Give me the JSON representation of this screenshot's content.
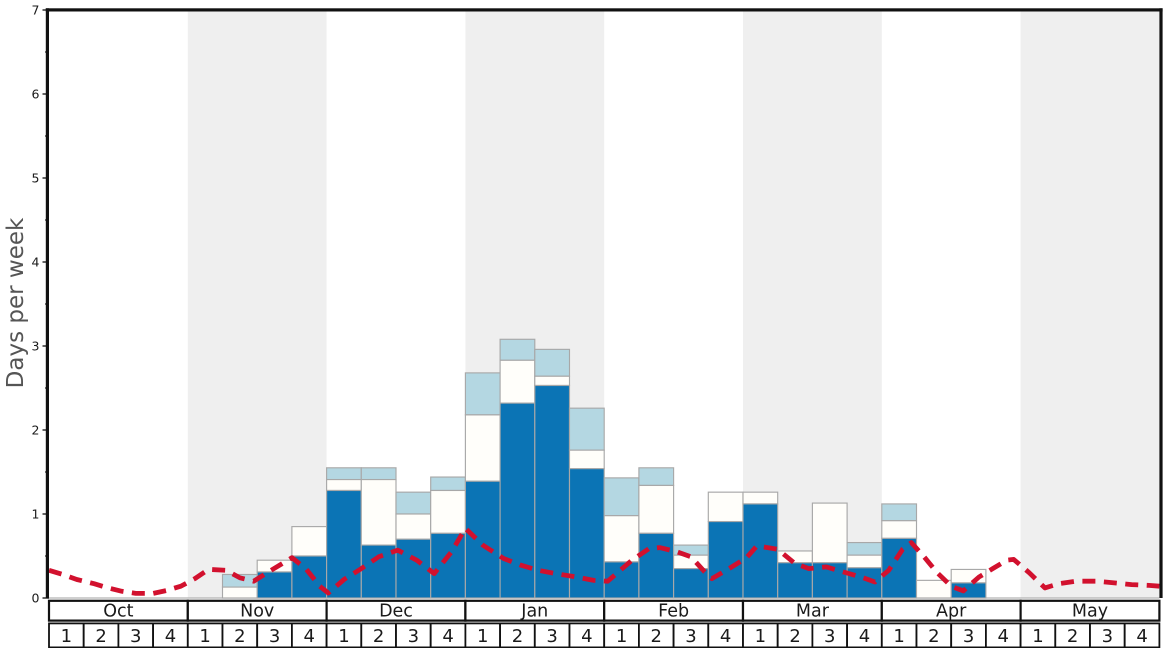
{
  "chart_data": {
    "type": "bar",
    "title": "",
    "ylabel": "Days per week",
    "ylim": [
      0,
      7
    ],
    "yticks": [
      "0",
      "1",
      "2",
      "3",
      "4",
      "5",
      "6",
      "7"
    ],
    "minor_tick_step": 0.5,
    "grid": false,
    "legend": "none",
    "months": [
      "Oct",
      "Nov",
      "Dec",
      "Jan",
      "Feb",
      "Mar",
      "Apr",
      "May"
    ],
    "weeks_per_month": [
      "1",
      "2",
      "3",
      "4"
    ],
    "shaded_months": [
      "Nov",
      "Jan",
      "Mar",
      "May"
    ],
    "categories": [
      "Oct-1",
      "Oct-2",
      "Oct-3",
      "Oct-4",
      "Nov-1",
      "Nov-2",
      "Nov-3",
      "Nov-4",
      "Dec-1",
      "Dec-2",
      "Dec-3",
      "Dec-4",
      "Jan-1",
      "Jan-2",
      "Jan-3",
      "Jan-4",
      "Feb-1",
      "Feb-2",
      "Feb-3",
      "Feb-4",
      "Mar-1",
      "Mar-2",
      "Mar-3",
      "Mar-4",
      "Apr-1",
      "Apr-2",
      "Apr-3",
      "Apr-4",
      "May-1",
      "May-2",
      "May-3",
      "May-4"
    ],
    "series_note": "stacked bars; values are cumulative tops in days-per-week; dark blue bottom segment, white middle segment, light blue top segment",
    "series": [
      {
        "name": "dark-blue-segment-top",
        "tops": [
          0,
          0,
          0,
          0,
          0,
          0,
          0.31,
          0.5,
          1.28,
          0.63,
          0.7,
          0.77,
          1.39,
          2.32,
          2.53,
          1.54,
          0.43,
          0.77,
          0.35,
          0.91,
          1.12,
          0.42,
          0.42,
          0.36,
          0.71,
          0,
          0.18,
          0,
          0,
          0,
          0,
          0
        ]
      },
      {
        "name": "white-segment-top",
        "tops": [
          0,
          0,
          0,
          0,
          0,
          0.13,
          0.45,
          0.85,
          1.41,
          1.41,
          1.0,
          1.28,
          2.18,
          2.83,
          2.64,
          1.76,
          0.98,
          1.34,
          0.51,
          1.26,
          1.26,
          0.56,
          1.13,
          0.51,
          0.92,
          0.21,
          0.34,
          0,
          0,
          0,
          0,
          0
        ]
      },
      {
        "name": "light-blue-segment-top",
        "tops": [
          0,
          0,
          0,
          0,
          0,
          0.28,
          0.45,
          0.85,
          1.55,
          1.55,
          1.26,
          1.44,
          2.68,
          3.08,
          2.96,
          2.26,
          1.43,
          1.55,
          0.63,
          1.26,
          1.26,
          0.56,
          1.13,
          0.66,
          1.12,
          0.21,
          0.34,
          0,
          0,
          0,
          0,
          0
        ]
      }
    ],
    "line_series": {
      "name": "red-dashed-line",
      "x_unit": "weeks from start of Oct (0-32)",
      "y_unit": "days per week",
      "points": [
        [
          0,
          0.33
        ],
        [
          0.4,
          0.28
        ],
        [
          0.8,
          0.22
        ],
        [
          1.3,
          0.17
        ],
        [
          1.7,
          0.12
        ],
        [
          2.1,
          0.08
        ],
        [
          2.5,
          0.055
        ],
        [
          3.0,
          0.055
        ],
        [
          3.4,
          0.09
        ],
        [
          3.8,
          0.14
        ],
        [
          4.2,
          0.23
        ],
        [
          4.6,
          0.34
        ],
        [
          5.1,
          0.33
        ],
        [
          5.5,
          0.24
        ],
        [
          5.9,
          0.2
        ],
        [
          6.4,
          0.33
        ],
        [
          7.0,
          0.48
        ],
        [
          7.4,
          0.35
        ],
        [
          7.8,
          0.14
        ],
        [
          8.05,
          0.06
        ],
        [
          8.5,
          0.22
        ],
        [
          9.0,
          0.35
        ],
        [
          9.5,
          0.49
        ],
        [
          10.05,
          0.57
        ],
        [
          10.6,
          0.45
        ],
        [
          11.1,
          0.29
        ],
        [
          11.6,
          0.55
        ],
        [
          12.0,
          0.83
        ],
        [
          12.5,
          0.63
        ],
        [
          13.1,
          0.47
        ],
        [
          13.6,
          0.39
        ],
        [
          14.1,
          0.33
        ],
        [
          14.6,
          0.29
        ],
        [
          15.2,
          0.25
        ],
        [
          15.7,
          0.21
        ],
        [
          16.1,
          0.2
        ],
        [
          16.8,
          0.45
        ],
        [
          17.3,
          0.59
        ],
        [
          17.6,
          0.6
        ],
        [
          18.1,
          0.55
        ],
        [
          18.5,
          0.49
        ],
        [
          18.9,
          0.31
        ],
        [
          19.1,
          0.23
        ],
        [
          19.6,
          0.35
        ],
        [
          20.1,
          0.48
        ],
        [
          20.4,
          0.62
        ],
        [
          21.0,
          0.58
        ],
        [
          21.5,
          0.41
        ],
        [
          21.9,
          0.35
        ],
        [
          22.4,
          0.37
        ],
        [
          22.9,
          0.31
        ],
        [
          23.4,
          0.25
        ],
        [
          23.8,
          0.19
        ],
        [
          24.2,
          0.33
        ],
        [
          24.6,
          0.58
        ],
        [
          24.85,
          0.66
        ],
        [
          25.2,
          0.5
        ],
        [
          25.6,
          0.3
        ],
        [
          26.0,
          0.14
        ],
        [
          26.35,
          0.085
        ],
        [
          26.8,
          0.25
        ],
        [
          27.2,
          0.35
        ],
        [
          27.6,
          0.45
        ],
        [
          27.8,
          0.46
        ],
        [
          28.25,
          0.3
        ],
        [
          28.7,
          0.12
        ],
        [
          29.1,
          0.17
        ],
        [
          29.6,
          0.2
        ],
        [
          30.2,
          0.2
        ],
        [
          30.7,
          0.18
        ],
        [
          31.2,
          0.16
        ],
        [
          31.7,
          0.15
        ],
        [
          32,
          0.14
        ]
      ]
    },
    "colors": {
      "bar_dark_blue": "#0b74b5",
      "bar_light_blue": "#b4d7e2",
      "bar_white": "#fffefa",
      "bar_border_gray": "#a8a8a8",
      "line_red": "#d2112e",
      "month_band_gray": "#efefef",
      "axis_black": "#111111",
      "baseline_gray": "#b3b3b3",
      "label_black": "#1a1a1a",
      "ylabel_gray": "#555555"
    }
  }
}
